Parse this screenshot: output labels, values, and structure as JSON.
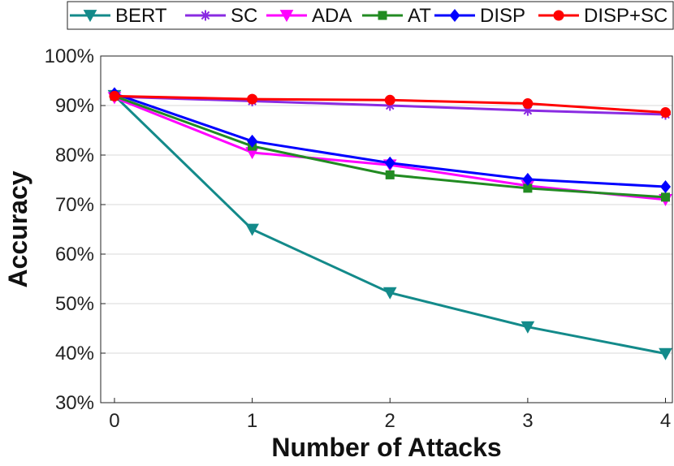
{
  "chart_data": {
    "type": "line",
    "xlabel": "Number of Attacks",
    "ylabel": "Accuracy",
    "x": [
      0,
      1,
      2,
      3,
      4
    ],
    "x_tick_labels": [
      "0",
      "1",
      "2",
      "3",
      "4"
    ],
    "xlim": [
      -0.1,
      4.05
    ],
    "ylim": [
      30,
      100
    ],
    "y_ticks": [
      30,
      40,
      50,
      60,
      70,
      80,
      90,
      100
    ],
    "y_tick_labels": [
      "30%",
      "40%",
      "50%",
      "60%",
      "70%",
      "80%",
      "90%",
      "100%"
    ],
    "grid": "y-major",
    "legend_position": "top",
    "series": [
      {
        "name": "BERT",
        "color": "#138a8a",
        "marker": "triangle-down",
        "values": [
          92.0,
          65.0,
          52.2,
          45.3,
          39.9
        ]
      },
      {
        "name": "SC",
        "color": "#8a2be2",
        "marker": "asterisk",
        "values": [
          91.8,
          90.9,
          90.0,
          89.0,
          88.2
        ]
      },
      {
        "name": "ADA",
        "color": "#ff00ff",
        "marker": "triangle-down",
        "values": [
          91.6,
          80.5,
          78.0,
          73.8,
          71.0
        ]
      },
      {
        "name": "AT",
        "color": "#228b22",
        "marker": "square",
        "values": [
          91.9,
          81.8,
          76.0,
          73.3,
          71.5
        ]
      },
      {
        "name": "DISP",
        "color": "#0000ff",
        "marker": "diamond",
        "values": [
          92.4,
          82.8,
          78.4,
          75.1,
          73.6
        ]
      },
      {
        "name": "DISP+SC",
        "color": "#ff0000",
        "marker": "circle",
        "values": [
          91.9,
          91.3,
          91.1,
          90.4,
          88.6
        ]
      }
    ]
  }
}
